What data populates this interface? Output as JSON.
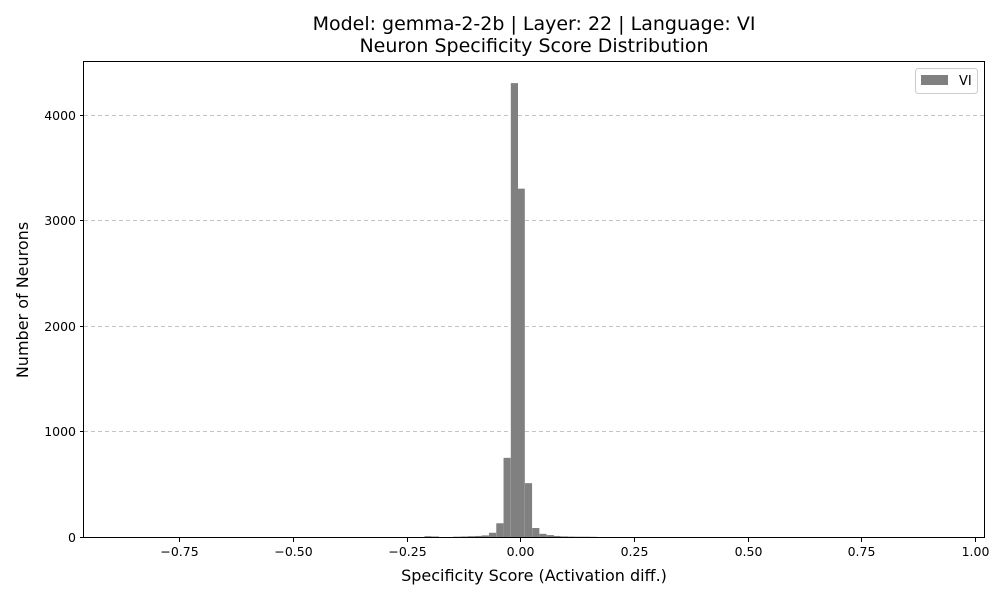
{
  "chart_data": {
    "type": "bar",
    "title_line1": "Model: gemma-2-2b | Layer: 22 | Language: VI",
    "title_line2": "Neuron Specificity Score Distribution",
    "xlabel": "Specificity Score (Activation diff.)",
    "ylabel": "Number of Neurons",
    "xlim": [
      -0.96,
      1.02
    ],
    "ylim": [
      0,
      4500
    ],
    "x_ticks": [
      -0.75,
      -0.5,
      -0.25,
      0.0,
      0.25,
      0.5,
      0.75,
      1.0
    ],
    "x_tick_labels": [
      "−0.75",
      "−0.50",
      "−0.25",
      "0.00",
      "0.25",
      "0.50",
      "0.75",
      "1.00"
    ],
    "y_ticks": [
      0,
      1000,
      2000,
      3000,
      4000
    ],
    "y_tick_labels": [
      "0",
      "1000",
      "2000",
      "3000",
      "4000"
    ],
    "grid": "y-dashed",
    "legend": {
      "placement": "top-right",
      "entries": [
        "VI"
      ]
    },
    "series": [
      {
        "name": "VI",
        "color": "#808080",
        "bin_width": 0.0158,
        "bins": [
          {
            "x0": -0.211,
            "count": 8
          },
          {
            "x0": -0.195,
            "count": 5
          },
          {
            "x0": -0.148,
            "count": 3
          },
          {
            "x0": -0.132,
            "count": 5
          },
          {
            "x0": -0.116,
            "count": 8
          },
          {
            "x0": -0.1,
            "count": 10
          },
          {
            "x0": -0.085,
            "count": 15
          },
          {
            "x0": -0.069,
            "count": 40
          },
          {
            "x0": -0.053,
            "count": 130
          },
          {
            "x0": -0.037,
            "count": 750
          },
          {
            "x0": -0.021,
            "count": 4300
          },
          {
            "x0": -0.006,
            "count": 3300
          },
          {
            "x0": 0.01,
            "count": 510
          },
          {
            "x0": 0.026,
            "count": 85
          },
          {
            "x0": 0.042,
            "count": 30
          },
          {
            "x0": 0.058,
            "count": 18
          },
          {
            "x0": 0.073,
            "count": 10
          },
          {
            "x0": 0.089,
            "count": 6
          },
          {
            "x0": 0.105,
            "count": 4
          },
          {
            "x0": 0.121,
            "count": 3
          },
          {
            "x0": 0.137,
            "count": 3
          },
          {
            "x0": 0.152,
            "count": 2
          }
        ]
      }
    ]
  }
}
